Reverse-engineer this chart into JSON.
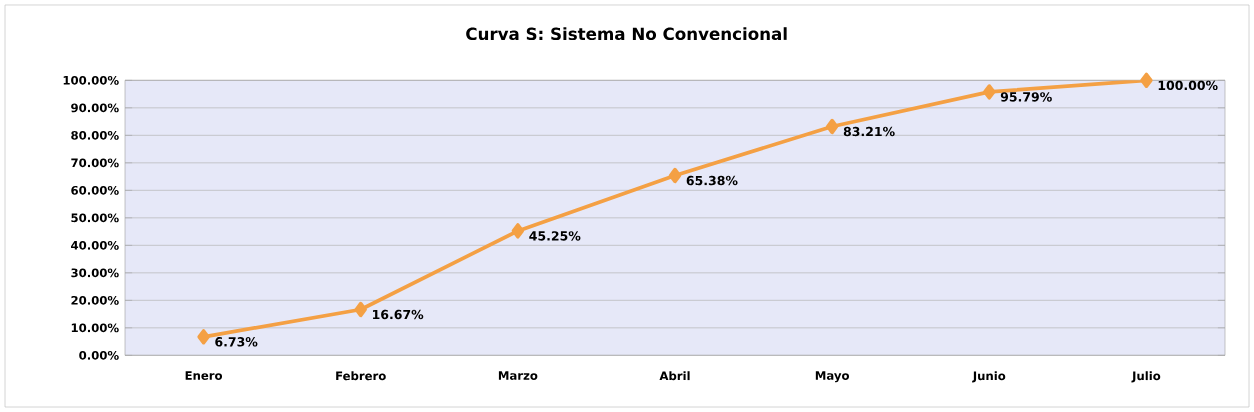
{
  "chart_data": {
    "type": "line",
    "title": "Curva S: Sistema No Convencional",
    "categories": [
      "Enero",
      "Febrero",
      "Marzo",
      "Abril",
      "Mayo",
      "Junio",
      "Julio"
    ],
    "values": [
      6.73,
      16.67,
      45.25,
      65.38,
      83.21,
      95.79,
      100
    ],
    "value_labels": [
      "6.73%",
      "16.67%",
      "45.25%",
      "65.38%",
      "83.21%",
      "95.79%",
      "100.00%"
    ],
    "color": "#f4a044",
    "marker": "diamond",
    "line_style": "solid",
    "grid": "y",
    "ylim": [
      0,
      100
    ],
    "yticks": [
      {
        "value": 0,
        "label": "0.00%"
      },
      {
        "value": 10,
        "label": "10.00%"
      },
      {
        "value": 20,
        "label": "20.00%"
      },
      {
        "value": 30,
        "label": "30.00%"
      },
      {
        "value": 40,
        "label": "40.00%"
      },
      {
        "value": 50,
        "label": "50.00%"
      },
      {
        "value": 60,
        "label": "60.00%"
      },
      {
        "value": 70,
        "label": "70.00%"
      },
      {
        "value": 80,
        "label": "80.00%"
      },
      {
        "value": 90,
        "label": "90.00%"
      },
      {
        "value": 100,
        "label": "100.00%"
      }
    ]
  }
}
